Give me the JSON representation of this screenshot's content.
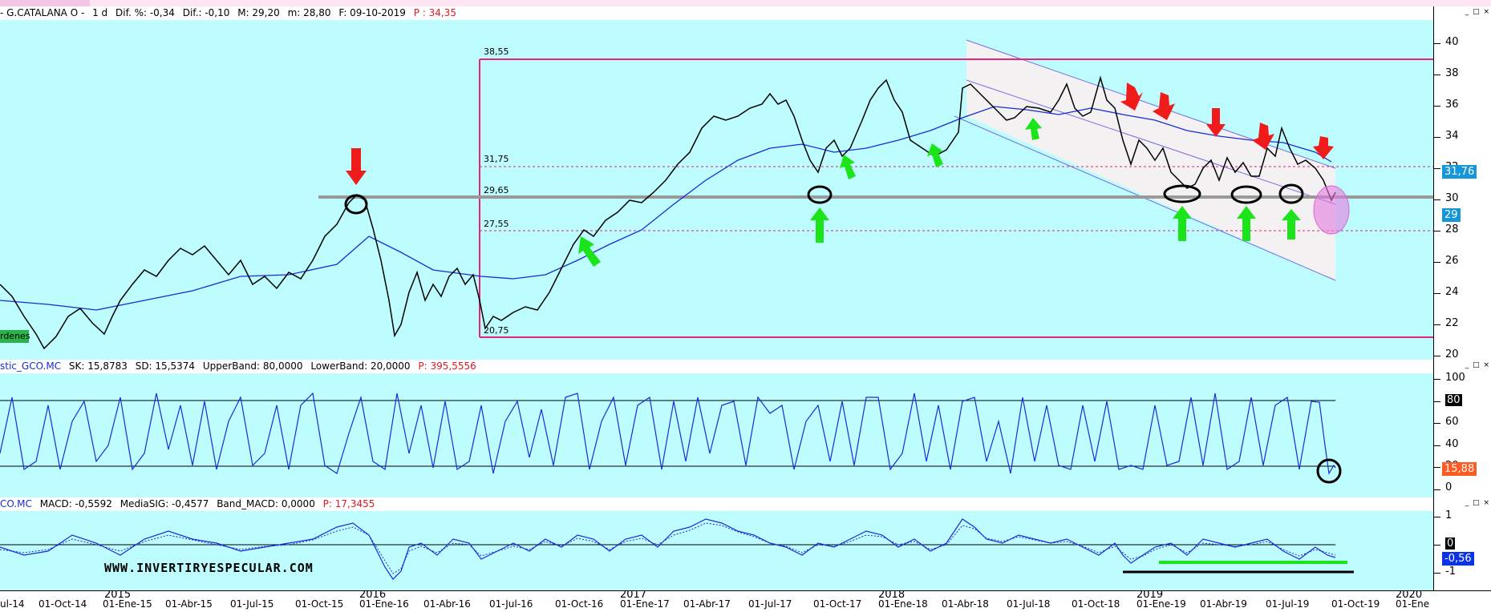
{
  "price_header": {
    "symbol": "- G.CATALANA O -",
    "period": "1 d",
    "dif_pct": "Dif. %: -0,34",
    "dif": "Dif.: -0,10",
    "max": "M: 29,20",
    "min": "m: 28,80",
    "date": "F: 09-10-2019",
    "price": "P : 34,35"
  },
  "stoch_header": {
    "name": "stic_GCO.MC",
    "sk": "SK: 15,8783",
    "sd": "SD: 15,5374",
    "upper": "UpperBand: 80,0000",
    "lower": "LowerBand: 20,0000",
    "p": "P: 395,5556"
  },
  "macd_header": {
    "name": "CO.MC",
    "macd": "MACD: -0,5592",
    "sig": "MediaSIG: -0,4577",
    "band": "Band_MACD: 0,0000",
    "p": "P: 17,3455"
  },
  "price_axis_ticks": [
    "40",
    "38",
    "36",
    "34",
    "32",
    "30",
    "28",
    "26",
    "24",
    "22",
    "20"
  ],
  "price_tags": {
    "current": "31,76",
    "cursor": "29"
  },
  "stoch_axis_ticks": [
    "100",
    "80",
    "60",
    "40",
    "20",
    "0"
  ],
  "stoch_tag": "15,88",
  "macd_axis_ticks": [
    "1",
    "0",
    "-1"
  ],
  "macd_tag": "-0,56",
  "macd_zero_tag": "0",
  "levels": {
    "l1": "38,55",
    "l2": "31,75",
    "l3": "29,65",
    "l4": "27,55",
    "l5": "20,75"
  },
  "ordenes_label": "rdenes",
  "watermark": "WWW.INVERTIRYESPECULAR.COM",
  "window_buttons": "_ □ ×",
  "x_dates": [
    "ul-14",
    "01-Oct-14",
    "01-Ene-15",
    "01-Abr-15",
    "01-Jul-15",
    "01-Oct-15",
    "01-Ene-16",
    "01-Abr-16",
    "01-Jul-16",
    "01-Oct-16",
    "01-Ene-17",
    "01-Abr-17",
    "01-Jul-17",
    "01-Oct-17",
    "01-Ene-18",
    "01-Abr-18",
    "01-Jul-18",
    "01-Oct-18",
    "01-Ene-19",
    "01-Abr-19",
    "01-Jul-19",
    "01-Oct-19",
    "01-Ene"
  ],
  "x_years": [
    "2015",
    "2016",
    "2017",
    "2018",
    "2019",
    "2020"
  ],
  "colors": {
    "pane_bg": "#bdfdff",
    "price_line": "#000000",
    "ma_line": "#1c2bd6",
    "level_line": "#e2247c",
    "arrow_red": "#f01b1b",
    "arrow_green": "#1be41b",
    "current_tag": "#1496d8",
    "stoch_tag": "#ff5a1f",
    "macd_tag": "#0a32e6"
  }
}
